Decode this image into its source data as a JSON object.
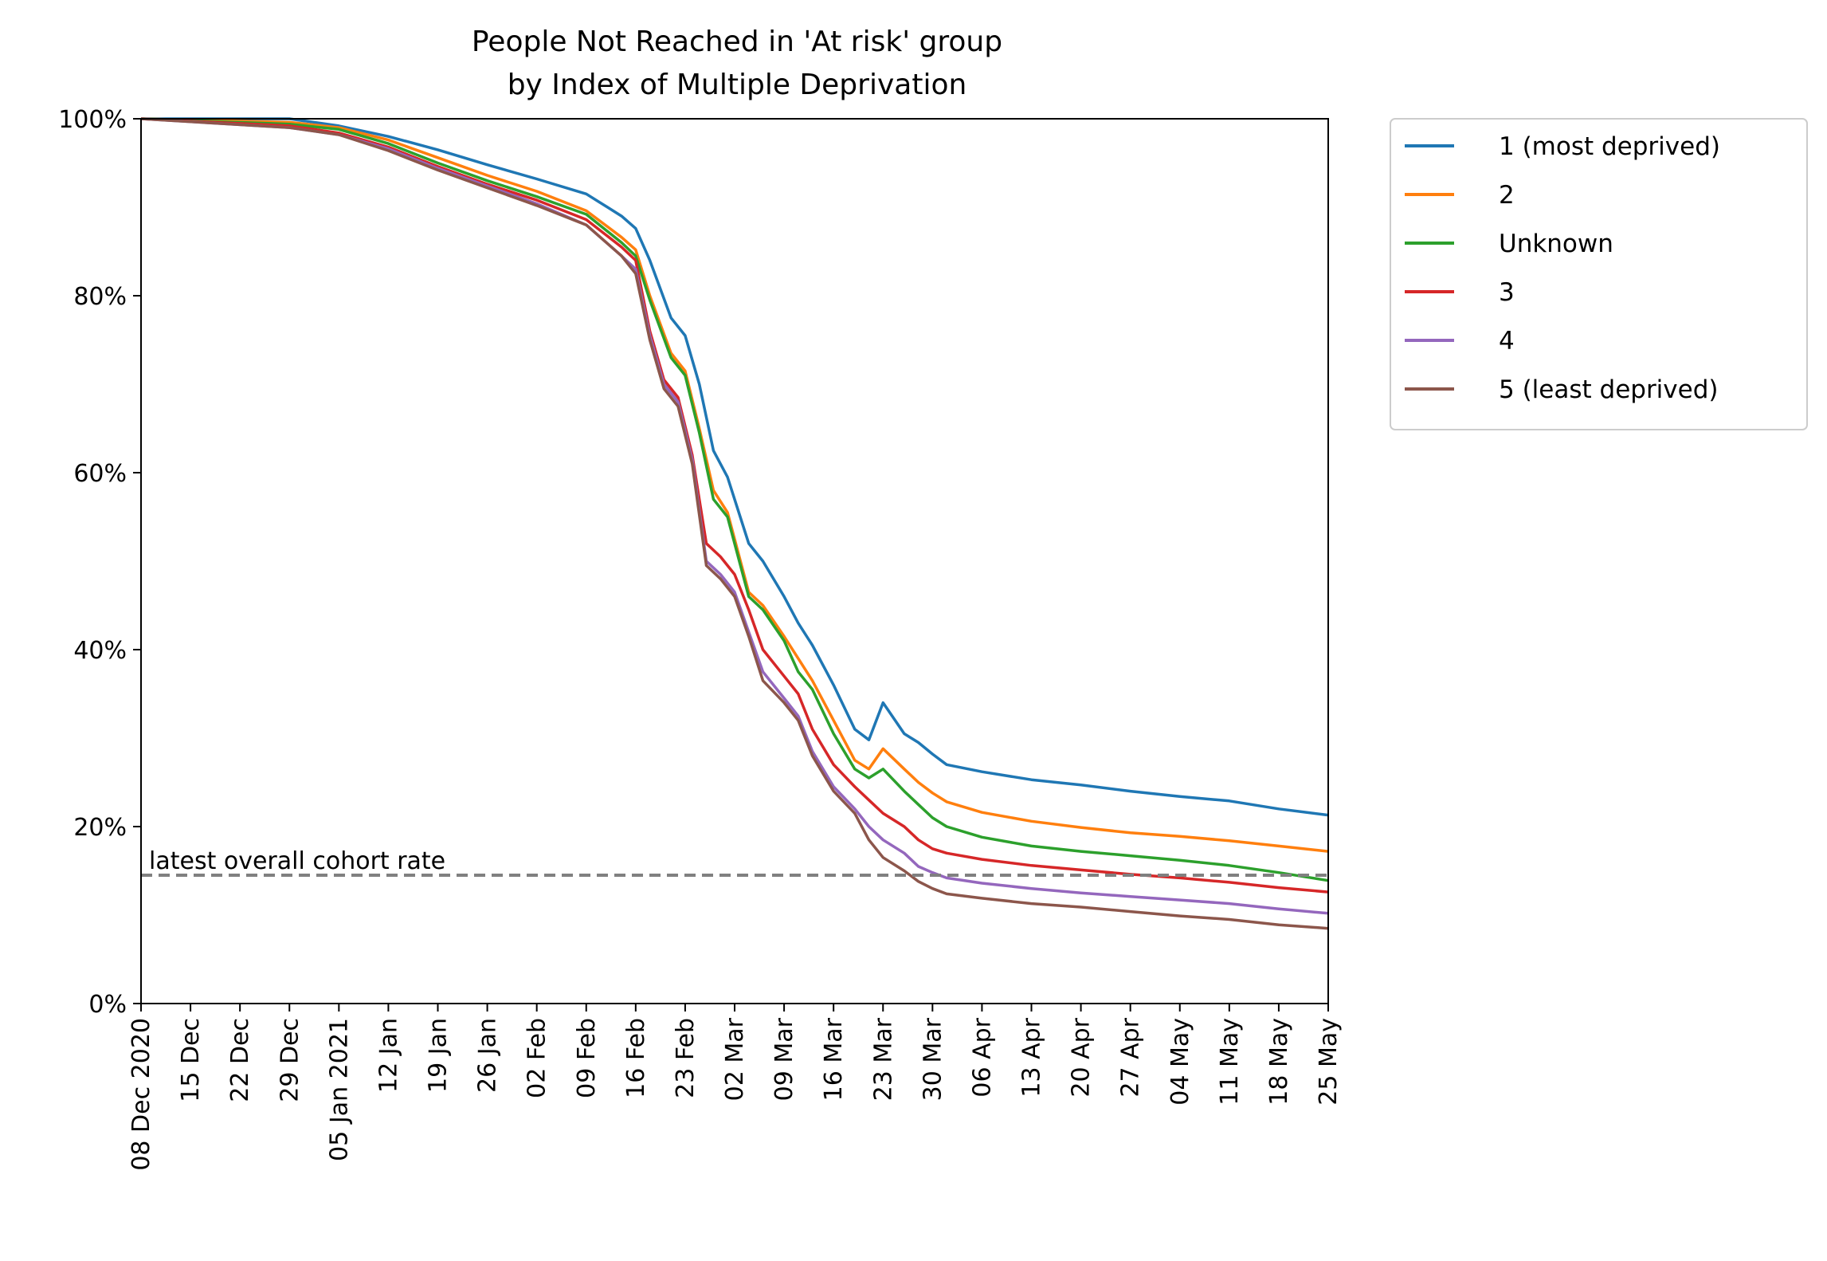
{
  "chart_data": {
    "type": "line",
    "title": "People Not Reached in 'At risk' group",
    "subtitle": "by Index of Multiple Deprivation",
    "xlabel": "",
    "ylabel": "",
    "x_range": [
      "2020-12-08",
      "2021-05-25"
    ],
    "ylim": [
      0,
      100
    ],
    "y_ticks": [
      0,
      20,
      40,
      60,
      80,
      100
    ],
    "y_tick_labels": [
      "0%",
      "20%",
      "40%",
      "60%",
      "80%",
      "100%"
    ],
    "x_ticks": [
      "2020-12-08",
      "2020-12-15",
      "2020-12-22",
      "2020-12-29",
      "2021-01-05",
      "2021-01-12",
      "2021-01-19",
      "2021-01-26",
      "2021-02-02",
      "2021-02-09",
      "2021-02-16",
      "2021-02-23",
      "2021-03-02",
      "2021-03-09",
      "2021-03-16",
      "2021-03-23",
      "2021-03-30",
      "2021-04-06",
      "2021-04-13",
      "2021-04-20",
      "2021-04-27",
      "2021-05-04",
      "2021-05-11",
      "2021-05-18",
      "2021-05-25"
    ],
    "x_tick_labels": [
      "08 Dec 2020",
      "15 Dec",
      "22 Dec",
      "29 Dec",
      "05 Jan 2021",
      "12 Jan",
      "19 Jan",
      "26 Jan",
      "02 Feb",
      "09 Feb",
      "16 Feb",
      "23 Feb",
      "02 Mar",
      "09 Mar",
      "16 Mar",
      "23 Mar",
      "30 Mar",
      "06 Apr",
      "13 Apr",
      "20 Apr",
      "27 Apr",
      "04 May",
      "11 May",
      "18 May",
      "25 May"
    ],
    "grid": false,
    "legend_position": "outside-right-top",
    "reference_line": {
      "label": "latest overall cohort rate",
      "value": 14.5,
      "color": "#808080",
      "style": "dashed"
    },
    "series": [
      {
        "name": "1 (most deprived)",
        "color": "#1f77b4",
        "x": [
          "2020-12-08",
          "2020-12-29",
          "2021-01-05",
          "2021-01-12",
          "2021-01-19",
          "2021-01-26",
          "2021-02-02",
          "2021-02-09",
          "2021-02-14",
          "2021-02-16",
          "2021-02-18",
          "2021-02-21",
          "2021-02-23",
          "2021-02-25",
          "2021-02-27",
          "2021-03-01",
          "2021-03-04",
          "2021-03-06",
          "2021-03-09",
          "2021-03-11",
          "2021-03-13",
          "2021-03-16",
          "2021-03-19",
          "2021-03-21",
          "2021-03-23",
          "2021-03-26",
          "2021-03-28",
          "2021-03-30",
          "2021-04-01",
          "2021-04-06",
          "2021-04-13",
          "2021-04-20",
          "2021-04-27",
          "2021-05-04",
          "2021-05-11",
          "2021-05-18",
          "2021-05-25"
        ],
        "y": [
          100,
          100,
          99.2,
          98.0,
          96.5,
          94.8,
          93.2,
          91.5,
          89.0,
          87.6,
          84.0,
          77.5,
          75.5,
          70.0,
          62.5,
          59.5,
          52.0,
          50.0,
          46.0,
          43.0,
          40.5,
          36.0,
          31.0,
          29.8,
          34.0,
          30.5,
          29.5,
          28.2,
          27.0,
          26.2,
          25.3,
          24.7,
          24.0,
          23.4,
          22.9,
          22.0,
          21.3
        ]
      },
      {
        "name": "2",
        "color": "#ff7f0e",
        "x": [
          "2020-12-08",
          "2020-12-29",
          "2021-01-05",
          "2021-01-12",
          "2021-01-19",
          "2021-01-26",
          "2021-02-02",
          "2021-02-09",
          "2021-02-14",
          "2021-02-16",
          "2021-02-18",
          "2021-02-21",
          "2021-02-23",
          "2021-02-25",
          "2021-02-27",
          "2021-03-01",
          "2021-03-04",
          "2021-03-06",
          "2021-03-09",
          "2021-03-11",
          "2021-03-13",
          "2021-03-16",
          "2021-03-19",
          "2021-03-21",
          "2021-03-23",
          "2021-03-26",
          "2021-03-28",
          "2021-03-30",
          "2021-04-01",
          "2021-04-06",
          "2021-04-13",
          "2021-04-20",
          "2021-04-27",
          "2021-05-04",
          "2021-05-11",
          "2021-05-18",
          "2021-05-25"
        ],
        "y": [
          100,
          99.6,
          99.0,
          97.6,
          95.6,
          93.6,
          91.8,
          89.6,
          86.6,
          85.2,
          80.0,
          73.5,
          71.5,
          65.0,
          58.0,
          55.5,
          46.5,
          45.0,
          41.5,
          39.0,
          36.5,
          32.0,
          27.5,
          26.5,
          28.8,
          26.5,
          25.0,
          23.8,
          22.8,
          21.6,
          20.6,
          19.9,
          19.3,
          18.9,
          18.4,
          17.8,
          17.2
        ]
      },
      {
        "name": "Unknown",
        "color": "#2ca02c",
        "x": [
          "2020-12-08",
          "2020-12-29",
          "2021-01-05",
          "2021-01-12",
          "2021-01-19",
          "2021-01-26",
          "2021-02-02",
          "2021-02-09",
          "2021-02-14",
          "2021-02-16",
          "2021-02-18",
          "2021-02-21",
          "2021-02-23",
          "2021-02-25",
          "2021-02-27",
          "2021-03-01",
          "2021-03-04",
          "2021-03-06",
          "2021-03-09",
          "2021-03-11",
          "2021-03-13",
          "2021-03-16",
          "2021-03-19",
          "2021-03-21",
          "2021-03-23",
          "2021-03-26",
          "2021-03-28",
          "2021-03-30",
          "2021-04-01",
          "2021-04-06",
          "2021-04-13",
          "2021-04-20",
          "2021-04-27",
          "2021-05-04",
          "2021-05-11",
          "2021-05-18",
          "2021-05-25"
        ],
        "y": [
          100,
          99.4,
          98.8,
          97.2,
          95.0,
          93.0,
          91.2,
          89.2,
          86.0,
          84.5,
          79.5,
          73.0,
          71.0,
          64.5,
          57.0,
          55.0,
          46.0,
          44.5,
          41.0,
          37.5,
          35.5,
          30.5,
          26.5,
          25.5,
          26.5,
          24.0,
          22.5,
          21.0,
          20.0,
          18.8,
          17.8,
          17.2,
          16.7,
          16.2,
          15.6,
          14.8,
          13.9
        ]
      },
      {
        "name": "3",
        "color": "#d62728",
        "x": [
          "2020-12-08",
          "2020-12-29",
          "2021-01-05",
          "2021-01-12",
          "2021-01-19",
          "2021-01-26",
          "2021-02-02",
          "2021-02-09",
          "2021-02-14",
          "2021-02-16",
          "2021-02-18",
          "2021-02-20",
          "2021-02-22",
          "2021-02-24",
          "2021-02-26",
          "2021-02-28",
          "2021-03-02",
          "2021-03-04",
          "2021-03-06",
          "2021-03-09",
          "2021-03-11",
          "2021-03-13",
          "2021-03-16",
          "2021-03-19",
          "2021-03-21",
          "2021-03-23",
          "2021-03-26",
          "2021-03-28",
          "2021-03-30",
          "2021-04-01",
          "2021-04-06",
          "2021-04-13",
          "2021-04-20",
          "2021-04-27",
          "2021-05-04",
          "2021-05-11",
          "2021-05-18",
          "2021-05-25"
        ],
        "y": [
          100,
          99.2,
          98.4,
          96.8,
          94.6,
          92.6,
          90.8,
          88.6,
          85.5,
          84.0,
          76.0,
          70.5,
          68.5,
          62.0,
          52.0,
          50.5,
          48.5,
          44.5,
          40.0,
          37.0,
          35.0,
          31.0,
          27.0,
          24.5,
          23.0,
          21.5,
          20.0,
          18.5,
          17.5,
          17.0,
          16.3,
          15.6,
          15.1,
          14.6,
          14.2,
          13.7,
          13.1,
          12.6
        ]
      },
      {
        "name": "4",
        "color": "#9467bd",
        "x": [
          "2020-12-08",
          "2020-12-29",
          "2021-01-05",
          "2021-01-12",
          "2021-01-19",
          "2021-01-26",
          "2021-02-02",
          "2021-02-09",
          "2021-02-14",
          "2021-02-16",
          "2021-02-18",
          "2021-02-20",
          "2021-02-22",
          "2021-02-24",
          "2021-02-26",
          "2021-02-28",
          "2021-03-02",
          "2021-03-04",
          "2021-03-06",
          "2021-03-09",
          "2021-03-11",
          "2021-03-13",
          "2021-03-16",
          "2021-03-19",
          "2021-03-21",
          "2021-03-23",
          "2021-03-26",
          "2021-03-28",
          "2021-03-30",
          "2021-04-01",
          "2021-04-06",
          "2021-04-13",
          "2021-04-20",
          "2021-04-27",
          "2021-05-04",
          "2021-05-11",
          "2021-05-18",
          "2021-05-25"
        ],
        "y": [
          100,
          99.0,
          98.2,
          96.6,
          94.4,
          92.4,
          90.4,
          88.0,
          84.5,
          83.0,
          75.5,
          70.0,
          68.0,
          61.5,
          50.0,
          48.5,
          46.5,
          42.0,
          37.5,
          34.5,
          32.5,
          28.5,
          24.5,
          22.0,
          20.0,
          18.5,
          17.0,
          15.5,
          14.8,
          14.2,
          13.6,
          13.0,
          12.5,
          12.1,
          11.7,
          11.3,
          10.7,
          10.2
        ]
      },
      {
        "name": "5 (least deprived)",
        "color": "#8c564b",
        "x": [
          "2020-12-08",
          "2020-12-29",
          "2021-01-05",
          "2021-01-12",
          "2021-01-19",
          "2021-01-26",
          "2021-02-02",
          "2021-02-09",
          "2021-02-14",
          "2021-02-16",
          "2021-02-18",
          "2021-02-20",
          "2021-02-22",
          "2021-02-24",
          "2021-02-26",
          "2021-02-28",
          "2021-03-02",
          "2021-03-04",
          "2021-03-06",
          "2021-03-09",
          "2021-03-11",
          "2021-03-13",
          "2021-03-16",
          "2021-03-19",
          "2021-03-21",
          "2021-03-23",
          "2021-03-26",
          "2021-03-28",
          "2021-03-30",
          "2021-04-01",
          "2021-04-06",
          "2021-04-13",
          "2021-04-20",
          "2021-04-27",
          "2021-05-04",
          "2021-05-11",
          "2021-05-18",
          "2021-05-25"
        ],
        "y": [
          100,
          99.0,
          98.2,
          96.4,
          94.2,
          92.2,
          90.2,
          88.0,
          84.5,
          82.5,
          75.0,
          69.5,
          67.5,
          61.0,
          49.5,
          48.0,
          46.0,
          41.5,
          36.5,
          34.0,
          32.0,
          28.0,
          24.0,
          21.5,
          18.5,
          16.5,
          15.0,
          13.8,
          13.0,
          12.4,
          11.9,
          11.3,
          10.9,
          10.4,
          9.9,
          9.5,
          8.9,
          8.5
        ]
      }
    ]
  }
}
